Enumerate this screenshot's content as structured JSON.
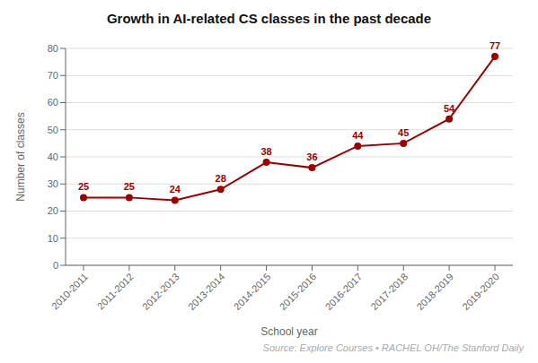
{
  "chart_data": {
    "type": "line",
    "title": "Growth in AI-related CS classes in the past decade",
    "xlabel": "School year",
    "ylabel": "Number of classes",
    "annotation": "Source: Explore Courses • RACHEL OH/The Stanford Daily",
    "categories": [
      "2010-2011",
      "2011-2012",
      "2012-2013",
      "2013-2014",
      "2014-2015",
      "2015-2016",
      "2016-2017",
      "2017-2018",
      "2018-2019",
      "2019-2020"
    ],
    "values": [
      25,
      25,
      24,
      28,
      38,
      36,
      44,
      45,
      54,
      77
    ],
    "color": "#9b0000",
    "ylim": [
      0,
      80
    ],
    "yticks": [
      0,
      10,
      20,
      30,
      40,
      50,
      60,
      70,
      80
    ],
    "grid": true,
    "data_labels": true
  }
}
